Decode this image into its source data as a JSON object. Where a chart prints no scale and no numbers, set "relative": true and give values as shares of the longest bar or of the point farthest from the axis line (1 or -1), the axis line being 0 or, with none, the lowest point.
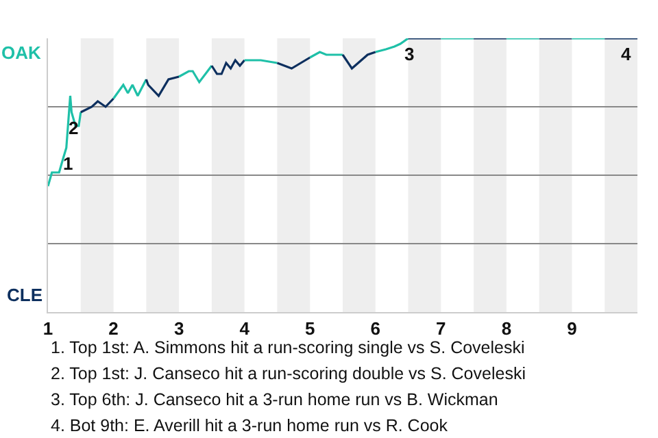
{
  "chart_data": {
    "type": "line",
    "relative": true,
    "xlim": [
      1,
      10
    ],
    "xticks": [
      1,
      2,
      3,
      4,
      5,
      6,
      7,
      8,
      9
    ],
    "grid": "y",
    "marker": "none",
    "line_style": "solid",
    "series": [
      {
        "color": "#1fc0a8",
        "x": [
          1.0,
          1.06,
          1.17,
          1.23,
          1.28,
          1.34,
          1.36,
          1.42,
          1.47,
          1.5
        ],
        "values": [
          0.46,
          0.51,
          0.51,
          0.56,
          0.6,
          0.79,
          0.73,
          0.68,
          0.68,
          0.73
        ]
      },
      {
        "color": "#0d2f5e",
        "x": [
          1.5,
          1.67,
          1.76,
          1.88,
          2.0
        ],
        "values": [
          0.73,
          0.75,
          0.77,
          0.75,
          0.78
        ]
      },
      {
        "color": "#1fc0a8",
        "x": [
          2.0,
          2.15,
          2.22,
          2.29,
          2.37,
          2.5
        ],
        "values": [
          0.78,
          0.83,
          0.8,
          0.83,
          0.79,
          0.85
        ]
      },
      {
        "color": "#0d2f5e",
        "x": [
          2.5,
          2.53,
          2.69,
          2.84,
          3.0
        ],
        "values": [
          0.85,
          0.83,
          0.79,
          0.85,
          0.86
        ]
      },
      {
        "color": "#1fc0a8",
        "x": [
          3.0,
          3.15,
          3.21,
          3.31,
          3.5
        ],
        "values": [
          0.86,
          0.88,
          0.88,
          0.84,
          0.9
        ]
      },
      {
        "color": "#0d2f5e",
        "x": [
          3.5,
          3.58,
          3.65,
          3.72,
          3.79,
          3.86,
          3.93,
          4.0
        ],
        "values": [
          0.9,
          0.87,
          0.87,
          0.91,
          0.89,
          0.92,
          0.9,
          0.92
        ]
      },
      {
        "color": "#1fc0a8",
        "x": [
          4.0,
          4.25,
          4.5
        ],
        "values": [
          0.92,
          0.92,
          0.91
        ]
      },
      {
        "color": "#0d2f5e",
        "x": [
          4.5,
          4.72,
          5.0
        ],
        "values": [
          0.91,
          0.89,
          0.93
        ]
      },
      {
        "color": "#1fc0a8",
        "x": [
          5.0,
          5.15,
          5.25,
          5.5
        ],
        "values": [
          0.93,
          0.95,
          0.94,
          0.94
        ]
      },
      {
        "color": "#0d2f5e",
        "x": [
          5.5,
          5.64,
          5.88,
          6.0
        ],
        "values": [
          0.94,
          0.89,
          0.94,
          0.95
        ]
      },
      {
        "color": "#1fc0a8",
        "x": [
          6.0,
          6.16,
          6.29,
          6.38,
          6.5
        ],
        "values": [
          0.95,
          0.96,
          0.97,
          0.98,
          1.0
        ]
      },
      {
        "color": "#0d2f5e",
        "x": [
          6.5,
          7.0
        ],
        "values": [
          1.0,
          1.0
        ]
      },
      {
        "color": "#1fc0a8",
        "x": [
          7.0,
          7.5
        ],
        "values": [
          1.0,
          1.0
        ]
      },
      {
        "color": "#0d2f5e",
        "x": [
          7.5,
          8.0
        ],
        "values": [
          1.0,
          1.0
        ]
      },
      {
        "color": "#1fc0a8",
        "x": [
          8.0,
          8.5
        ],
        "values": [
          1.0,
          1.0
        ]
      },
      {
        "color": "#0d2f5e",
        "x": [
          8.5,
          9.0
        ],
        "values": [
          1.0,
          1.0
        ]
      },
      {
        "color": "#1fc0a8",
        "x": [
          9.0,
          9.5
        ],
        "values": [
          1.0,
          1.0
        ]
      },
      {
        "color": "#0d2f5e",
        "x": [
          9.5,
          10
        ],
        "values": [
          1.0,
          1.0
        ]
      }
    ],
    "bands": [
      {
        "axis": "x",
        "from": 1.5,
        "to": 2,
        "color": "#eeeeee"
      },
      {
        "axis": "x",
        "from": 2.5,
        "to": 3,
        "color": "#eeeeee"
      },
      {
        "axis": "x",
        "from": 3.5,
        "to": 4,
        "color": "#eeeeee"
      },
      {
        "axis": "x",
        "from": 4.5,
        "to": 5,
        "color": "#eeeeee"
      },
      {
        "axis": "x",
        "from": 5.5,
        "to": 6,
        "color": "#eeeeee"
      },
      {
        "axis": "x",
        "from": 6.5,
        "to": 7,
        "color": "#eeeeee"
      },
      {
        "axis": "x",
        "from": 7.5,
        "to": 8,
        "color": "#eeeeee"
      },
      {
        "axis": "x",
        "from": 8.5,
        "to": 9,
        "color": "#eeeeee"
      },
      {
        "axis": "x",
        "from": 9.5,
        "to": 10,
        "color": "#eeeeee"
      }
    ],
    "annotations": [
      "OAK",
      "CLE",
      {
        "text": "1",
        "x": 1.28,
        "y": 0.6
      },
      {
        "text": "2",
        "x": 1.36,
        "y": 0.73
      },
      {
        "text": "3",
        "x": 6.5,
        "y": 1.0
      },
      {
        "text": "4",
        "x": 10,
        "y": 1.0
      },
      "1. Top 1st: A. Simmons hit a run-scoring single vs S. Coveleski",
      "2. Top 1st: J. Canseco hit a run-scoring double vs S. Coveleski",
      "3. Top 6th: J. Canseco hit a 3-run home run vs B. Wickman",
      "4. Bot 9th: E. Averill hit a 3-run home run vs R. Cook"
    ]
  }
}
